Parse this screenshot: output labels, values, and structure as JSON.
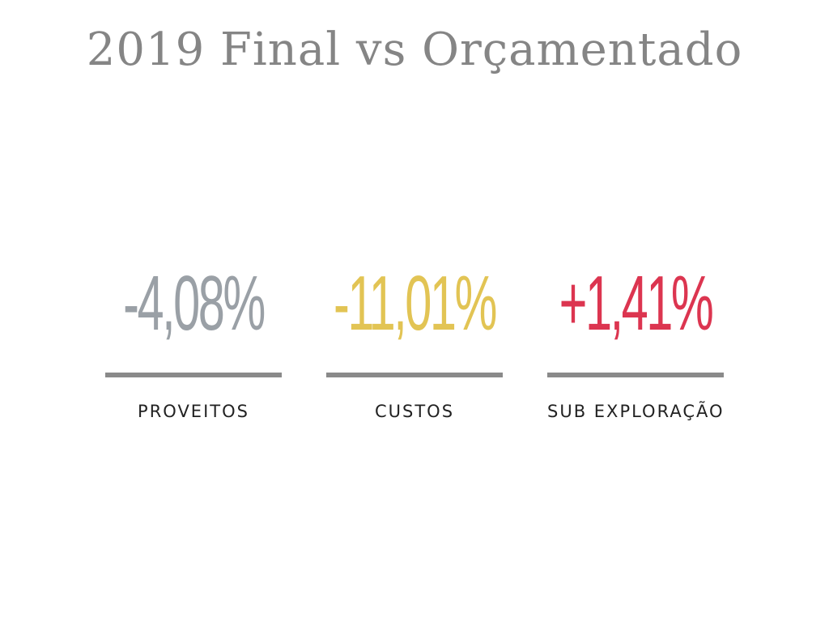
{
  "title": "2019 Final vs Orçamentado",
  "kpis": [
    {
      "value": "-4,08%",
      "label": "PROVEITOS",
      "color": "#9aa0a6"
    },
    {
      "value": "-11,01%",
      "label": "CUSTOS",
      "color": "#e2c454"
    },
    {
      "value": "+1,41%",
      "label": "SUB EXPLORAÇÃO",
      "color": "#dc3550"
    }
  ],
  "colors": {
    "title": "#858585",
    "rule": "#8a8a8a",
    "label": "#222222",
    "background": "#ffffff"
  }
}
